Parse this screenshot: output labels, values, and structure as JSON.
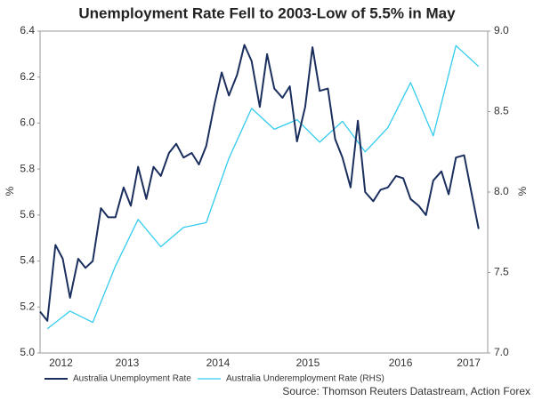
{
  "chart_data": {
    "type": "line",
    "title": "Unemployment Rate Fell to 2003-Low of 5.5% in May",
    "y_label": "%",
    "y2_label": "%",
    "source": "Source: Thomson Reuters Datastream, Action Forex",
    "xlim": [
      2012.5,
      2017.43
    ],
    "xticks": [
      {
        "value": 2012.73,
        "label": "2012"
      },
      {
        "value": 2013.46,
        "label": "2013"
      },
      {
        "value": 2014.46,
        "label": "2014"
      },
      {
        "value": 2015.45,
        "label": "2015"
      },
      {
        "value": 2016.47,
        "label": "2016"
      },
      {
        "value": 2017.22,
        "label": "2017"
      }
    ],
    "ylim": [
      5.0,
      6.4
    ],
    "yticks": [
      {
        "value": 5.0,
        "label": "5.0"
      },
      5.2,
      5.4,
      5.6,
      5.8,
      {
        "value": 6.0,
        "label": "6.0"
      },
      6.2,
      6.4
    ],
    "y2lim": [
      7.0,
      9.0
    ],
    "y2ticks": [
      {
        "value": 7.0,
        "label": "7.0"
      },
      7.5,
      {
        "value": 8.0,
        "label": "8.0"
      },
      8.5,
      {
        "value": 9.0,
        "label": "9.0"
      }
    ],
    "legend": "bottom",
    "series": [
      {
        "name": "Australia Unemployment Rate",
        "color": "#1b2f5e",
        "x": [
          2012.5,
          2012.58,
          2012.67,
          2012.75,
          2012.83,
          2012.92,
          2013.0,
          2013.08,
          2013.17,
          2013.25,
          2013.33,
          2013.42,
          2013.5,
          2013.58,
          2013.67,
          2013.75,
          2013.83,
          2013.92,
          2014.0,
          2014.08,
          2014.17,
          2014.25,
          2014.33,
          2014.42,
          2014.5,
          2014.58,
          2014.67,
          2014.75,
          2014.83,
          2014.92,
          2015.0,
          2015.08,
          2015.17,
          2015.25,
          2015.33,
          2015.42,
          2015.5,
          2015.58,
          2015.67,
          2015.75,
          2015.83,
          2015.92,
          2016.0,
          2016.08,
          2016.17,
          2016.25,
          2016.33,
          2016.42,
          2016.5,
          2016.58,
          2016.67,
          2016.75,
          2016.83,
          2016.92,
          2017.0,
          2017.08,
          2017.17,
          2017.25,
          2017.33
        ],
        "values": [
          5.18,
          5.14,
          5.47,
          5.41,
          5.24,
          5.41,
          5.37,
          5.4,
          5.63,
          5.59,
          5.59,
          5.72,
          5.64,
          5.81,
          5.67,
          5.81,
          5.77,
          5.87,
          5.91,
          5.85,
          5.87,
          5.82,
          5.9,
          6.08,
          6.22,
          6.12,
          6.21,
          6.34,
          6.27,
          6.07,
          6.3,
          6.15,
          6.11,
          6.16,
          5.92,
          6.07,
          6.33,
          6.14,
          6.15,
          5.93,
          5.85,
          5.72,
          6.01,
          5.7,
          5.66,
          5.71,
          5.72,
          5.77,
          5.76,
          5.67,
          5.64,
          5.6,
          5.75,
          5.79,
          5.69,
          5.85,
          5.86,
          5.7,
          5.54
        ]
      },
      {
        "name": "Australia Underemployment Rate (RHS)",
        "color": "#33ccee",
        "axis": "y2",
        "x": [
          2012.58,
          2012.83,
          2013.08,
          2013.33,
          2013.58,
          2013.83,
          2014.08,
          2014.33,
          2014.58,
          2014.83,
          2015.08,
          2015.33,
          2015.58,
          2015.83,
          2016.08,
          2016.33,
          2016.58,
          2016.83,
          2017.08,
          2017.33
        ],
        "values": [
          7.15,
          7.26,
          7.19,
          7.54,
          7.83,
          7.66,
          7.78,
          7.81,
          8.21,
          8.52,
          8.39,
          8.45,
          8.31,
          8.44,
          8.25,
          8.4,
          8.68,
          8.35,
          8.91,
          8.78
        ]
      }
    ]
  }
}
